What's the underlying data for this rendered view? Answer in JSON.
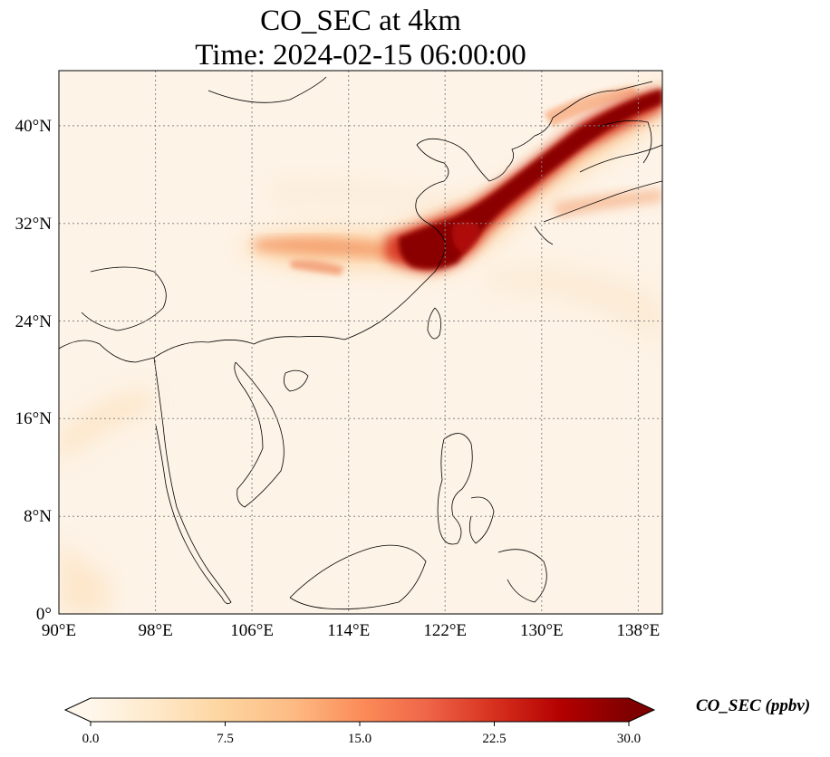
{
  "title": {
    "line1": "CO_SEC at 4km",
    "line2": "Time: 2024-02-15 06:00:00"
  },
  "map": {
    "lon_range": [
      90,
      140
    ],
    "lat_range": [
      0,
      44.5
    ],
    "lon_ticks": [
      "90°E",
      "98°E",
      "106°E",
      "114°E",
      "122°E",
      "130°E",
      "138°E"
    ],
    "lat_ticks": [
      "0°",
      "8°N",
      "16°N",
      "24°N",
      "32°N",
      "40°N"
    ],
    "gridlines": true,
    "plume_description_values": "CO_SEC concentration field"
  },
  "colorbar": {
    "label": "CO_SEC (ppbv)",
    "ticks": [
      "0.0",
      "7.5",
      "15.0",
      "22.5",
      "30.0"
    ],
    "vmin": 0,
    "vmax": 30,
    "colormap": [
      "#fff7ec",
      "#fee8c8",
      "#fdd49e",
      "#fdbb84",
      "#fc8d59",
      "#ef6548",
      "#d7301f",
      "#b30000",
      "#7f0000"
    ],
    "extend": "both"
  }
}
